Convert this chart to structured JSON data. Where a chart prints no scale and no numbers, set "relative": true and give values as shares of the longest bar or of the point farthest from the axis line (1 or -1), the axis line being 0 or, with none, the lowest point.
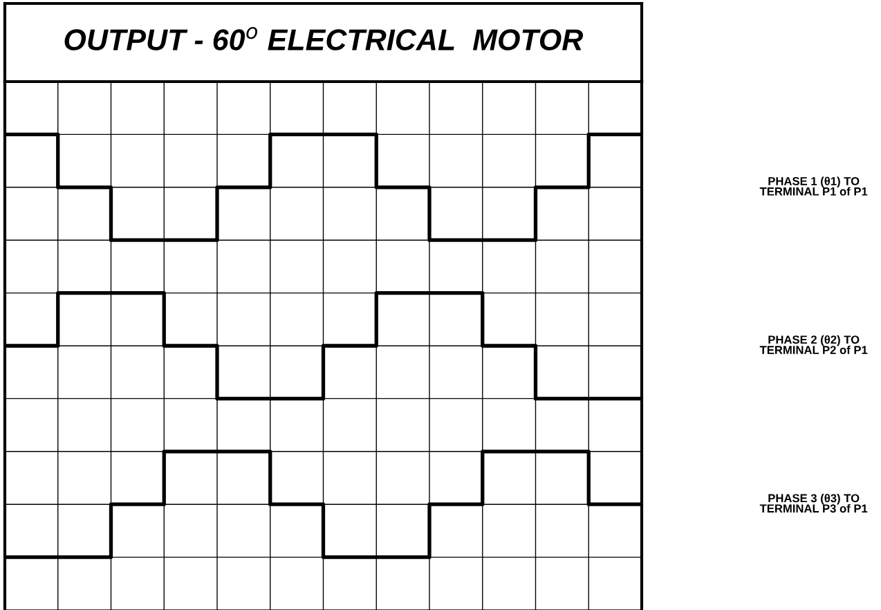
{
  "chart_data": {
    "type": "step",
    "title": "OUTPUT - 60$^{o}$ ELECTRICAL  MOTOR",
    "relative": true,
    "grid": true,
    "legend": false,
    "categories": [
      null,
      null,
      null,
      null,
      null,
      null,
      null,
      null,
      null,
      null,
      null,
      null,
      null
    ],
    "series": [
      {
        "name": "PHASE 1 (θ1) TO\nTERMINAL P1 of P1",
        "color": "#000000",
        "values": [
          1,
          0.875,
          0.75,
          0.75,
          0.875,
          1,
          1,
          0.875,
          0.75,
          0.75,
          0.875,
          1,
          1
        ]
      },
      {
        "name": "PHASE 2 (θ2) TO\nTERMINAL P2 of P1",
        "color": "#000000",
        "values": [
          0.5,
          0.625,
          0.625,
          0.5,
          0.375,
          0.375,
          0.5,
          0.625,
          0.625,
          0.5,
          0.375,
          0.375,
          0.375
        ]
      },
      {
        "name": "PHASE 3 (θ3) TO\nTERMINAL P3 of P1",
        "color": "#000000",
        "values": [
          0,
          0,
          0.125,
          0.25,
          0.25,
          0.125,
          0,
          0,
          0.125,
          0.25,
          0.25,
          0.125,
          0.125
        ]
      }
    ]
  }
}
